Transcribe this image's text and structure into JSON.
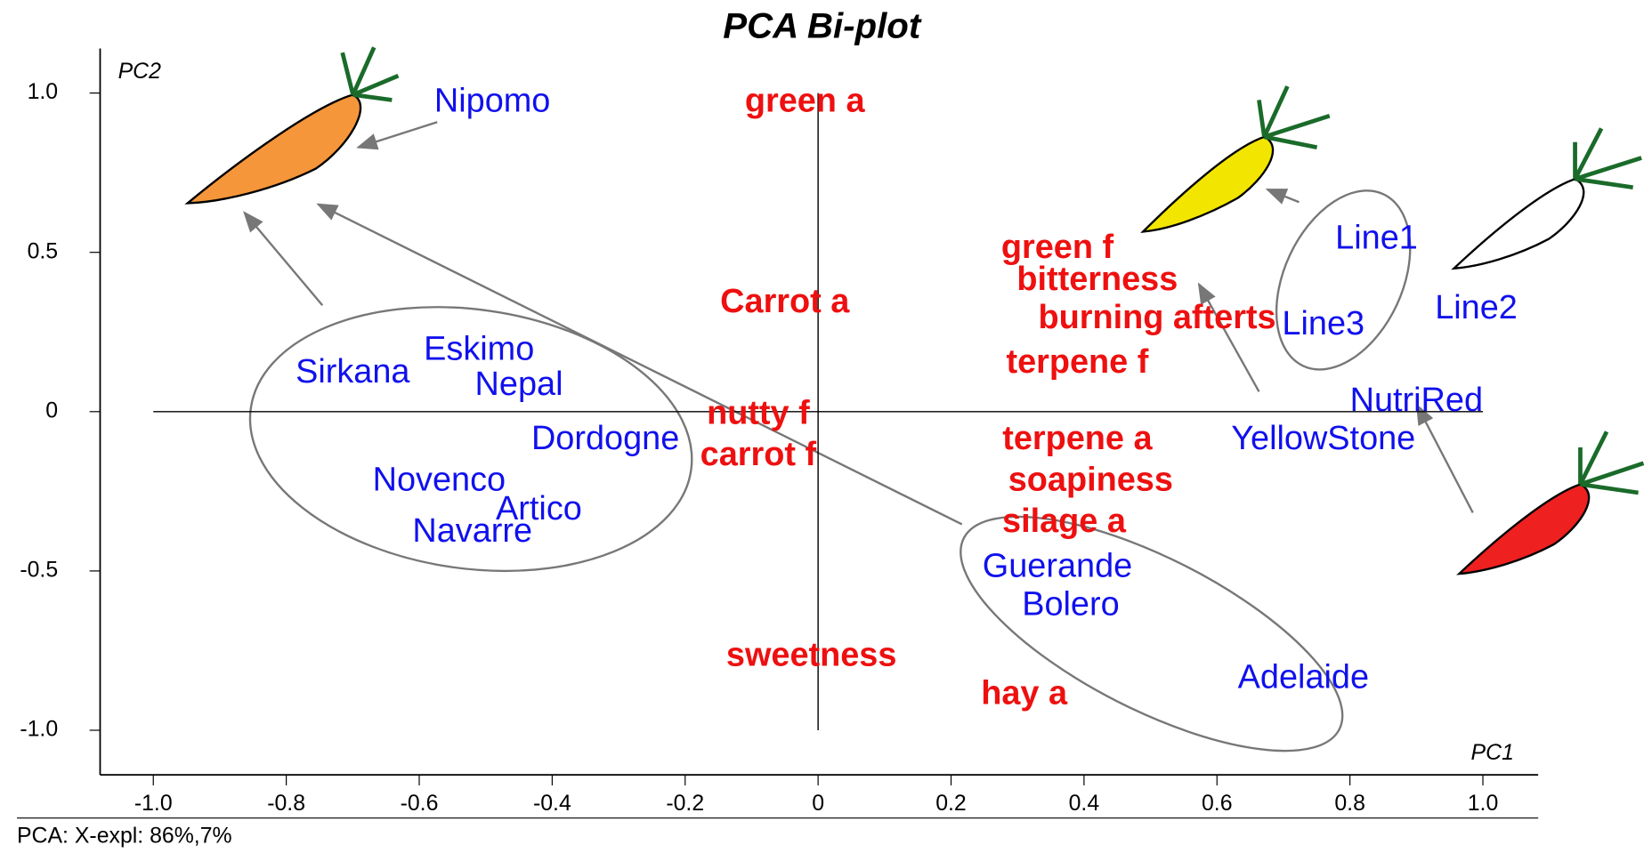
{
  "chart_data": {
    "type": "scatter",
    "title": "PCA Bi-plot",
    "x_label": "PC1",
    "y_label": "PC2",
    "footer": "PCA: X-expl: 86%,7%",
    "xlim": [
      -1.08,
      1.08
    ],
    "ylim": [
      -1.14,
      1.14
    ],
    "xticks": [
      {
        "value": -1,
        "label": "-1.0"
      },
      -0.8,
      -0.6,
      -0.4,
      -0.2,
      0,
      0.2,
      0.4,
      0.6,
      0.8,
      {
        "value": 1,
        "label": "1.0"
      }
    ],
    "yticks": [
      {
        "value": 1,
        "label": "1.0"
      },
      0.5,
      0,
      -0.5,
      {
        "value": -1,
        "label": "-1.0"
      }
    ],
    "series": [
      {
        "color": "#1010ee",
        "labels": [
          "Nipomo",
          "Sirkana",
          "Eskimo",
          "Nepal",
          "Dordogne",
          "Novenco",
          "Artico",
          "Navarre",
          "Line1",
          "Line3",
          "Line2",
          "NutriRed",
          "YellowStone",
          "Guerande",
          "Bolero",
          "Adelaide"
        ],
        "x": [
          -0.49,
          -0.7,
          -0.51,
          -0.45,
          -0.32,
          -0.57,
          -0.42,
          -0.52,
          0.84,
          0.76,
          0.99,
          0.9,
          0.76,
          0.36,
          0.38,
          0.73
        ],
        "values": [
          0.97,
          0.12,
          0.19,
          0.08,
          -0.09,
          -0.22,
          -0.31,
          -0.38,
          0.54,
          0.27,
          0.32,
          0.03,
          -0.09,
          -0.49,
          -0.61,
          -0.84
        ]
      },
      {
        "color": "#ee1010",
        "labels": [
          "green a",
          "Carrot  a",
          "nutty f",
          "carrot f",
          "sweetness",
          "hay a",
          "green f",
          "bitterness",
          "burning afterts",
          "terpene f",
          "terpene a",
          "soapiness",
          "silage a"
        ],
        "x": [
          -0.02,
          -0.05,
          -0.09,
          -0.09,
          -0.01,
          0.31,
          0.36,
          0.42,
          0.51,
          0.39,
          0.39,
          0.41,
          0.37
        ],
        "values": [
          0.97,
          0.34,
          -0.01,
          -0.14,
          -0.77,
          -0.89,
          0.51,
          0.41,
          0.29,
          0.15,
          -0.09,
          -0.22,
          -0.35
        ]
      }
    ]
  }
}
